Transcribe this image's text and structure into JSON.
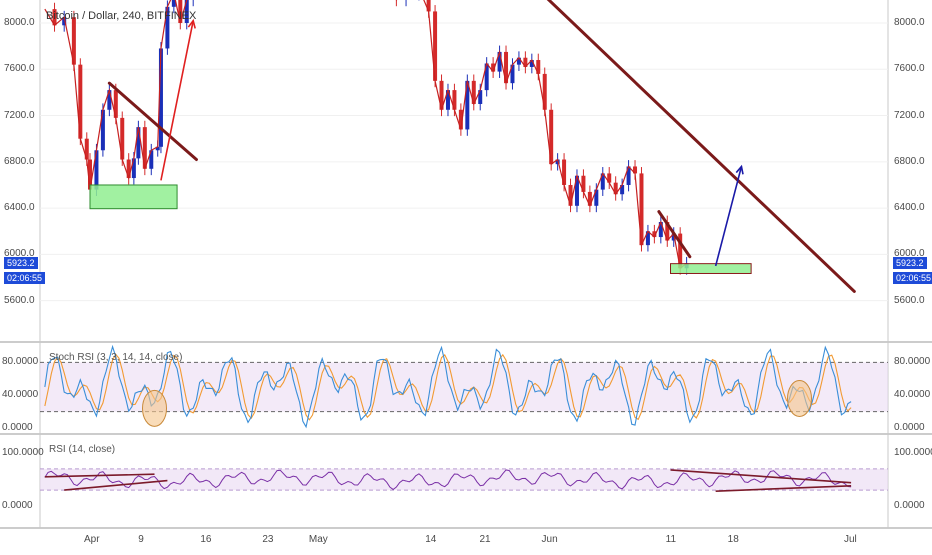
{
  "chart_data": [
    {
      "type": "candlestick",
      "title": "Bitcoin / Dollar, 240, BITFINEX",
      "ylim": [
        5500,
        8300
      ],
      "y_ticks": [
        "8000.0",
        "7600.0",
        "7200.0",
        "6800.0",
        "6400.0",
        "6000.0",
        "5600.0"
      ],
      "price_badge": "5923.2",
      "countdown_badge": "02:06:55",
      "close_series": [
        {
          "x": 0,
          "y": 8120
        },
        {
          "x": 1.5,
          "y": 7980
        },
        {
          "x": 3,
          "y": 8050
        },
        {
          "x": 4.5,
          "y": 7640
        },
        {
          "x": 5.5,
          "y": 7000
        },
        {
          "x": 6.5,
          "y": 6820
        },
        {
          "x": 7,
          "y": 6560
        },
        {
          "x": 8,
          "y": 6900
        },
        {
          "x": 9,
          "y": 7250
        },
        {
          "x": 10,
          "y": 7420
        },
        {
          "x": 11,
          "y": 7180
        },
        {
          "x": 12,
          "y": 6820
        },
        {
          "x": 13,
          "y": 6660
        },
        {
          "x": 13.8,
          "y": 6830
        },
        {
          "x": 14.5,
          "y": 7100
        },
        {
          "x": 15.5,
          "y": 6740
        },
        {
          "x": 16.5,
          "y": 6900
        },
        {
          "x": 17.5,
          "y": 6930
        },
        {
          "x": 18,
          "y": 7780
        },
        {
          "x": 19,
          "y": 8140
        },
        {
          "x": 20,
          "y": 8260
        },
        {
          "x": 21,
          "y": 8000
        },
        {
          "x": 22,
          "y": 8200
        },
        {
          "x": 23,
          "y": 8300
        },
        {
          "x": 52,
          "y": 8300
        },
        {
          "x": 53,
          "y": 8280
        },
        {
          "x": 54.5,
          "y": 8200
        },
        {
          "x": 56,
          "y": 8250
        },
        {
          "x": 58,
          "y": 8300
        },
        {
          "x": 59.5,
          "y": 8100
        },
        {
          "x": 60.5,
          "y": 7500
        },
        {
          "x": 61.5,
          "y": 7250
        },
        {
          "x": 62.5,
          "y": 7420
        },
        {
          "x": 63.5,
          "y": 7250
        },
        {
          "x": 64.5,
          "y": 7080
        },
        {
          "x": 65.5,
          "y": 7500
        },
        {
          "x": 66.5,
          "y": 7300
        },
        {
          "x": 67.5,
          "y": 7420
        },
        {
          "x": 68.5,
          "y": 7650
        },
        {
          "x": 69.5,
          "y": 7580
        },
        {
          "x": 70.5,
          "y": 7750
        },
        {
          "x": 71.5,
          "y": 7480
        },
        {
          "x": 72.5,
          "y": 7640
        },
        {
          "x": 73.5,
          "y": 7700
        },
        {
          "x": 74.5,
          "y": 7620
        },
        {
          "x": 75.5,
          "y": 7680
        },
        {
          "x": 76.5,
          "y": 7560
        },
        {
          "x": 77.5,
          "y": 7250
        },
        {
          "x": 78.5,
          "y": 6780
        },
        {
          "x": 79.5,
          "y": 6820
        },
        {
          "x": 80.5,
          "y": 6600
        },
        {
          "x": 81.5,
          "y": 6420
        },
        {
          "x": 82.5,
          "y": 6680
        },
        {
          "x": 83.5,
          "y": 6540
        },
        {
          "x": 84.5,
          "y": 6420
        },
        {
          "x": 85.5,
          "y": 6560
        },
        {
          "x": 86.5,
          "y": 6700
        },
        {
          "x": 87.5,
          "y": 6620
        },
        {
          "x": 88.5,
          "y": 6520
        },
        {
          "x": 89.5,
          "y": 6600
        },
        {
          "x": 90.5,
          "y": 6760
        },
        {
          "x": 91.5,
          "y": 6700
        },
        {
          "x": 92.5,
          "y": 6080
        },
        {
          "x": 93.5,
          "y": 6200
        },
        {
          "x": 94.5,
          "y": 6150
        },
        {
          "x": 95.5,
          "y": 6280
        },
        {
          "x": 96.5,
          "y": 6120
        },
        {
          "x": 97.5,
          "y": 6180
        },
        {
          "x": 98.5,
          "y": 5880
        },
        {
          "x": 99.5,
          "y": 5923
        }
      ],
      "trendlines": [
        {
          "from": {
            "x": 10,
            "y": 7480
          },
          "to": {
            "x": 23.5,
            "y": 6820
          },
          "color": "#7b1a1a"
        },
        {
          "from": {
            "x": 77,
            "y": 8260
          },
          "to": {
            "x": 125.5,
            "y": 5680
          },
          "color": "#7b1a1a"
        },
        {
          "from": {
            "x": 95.2,
            "y": 6370
          },
          "to": {
            "x": 100,
            "y": 5980
          },
          "color": "#7b1a1a"
        }
      ],
      "support_zones": [
        {
          "x0": 7,
          "x1": 20.5,
          "y0": 6395,
          "y1": 6600,
          "color": "#90ee90",
          "border": "#2e8b2e"
        },
        {
          "x0": 97,
          "x1": 109.5,
          "y0": 5835,
          "y1": 5920,
          "color": "#90ee90",
          "border": "#8b1a1a"
        }
      ],
      "arrows": [
        {
          "from": {
            "x": 18,
            "y": 6640
          },
          "to": {
            "x": 23,
            "y": 8020
          },
          "color": "#e02020"
        },
        {
          "from": {
            "x": 104,
            "y": 5900
          },
          "to": {
            "x": 108,
            "y": 6760
          },
          "color": "#1a1aa8"
        }
      ]
    },
    {
      "type": "line",
      "title": "Stoch RSI (3, 3, 14, 14, close)",
      "ylim": [
        0,
        100
      ],
      "y_ticks": [
        "80.0000",
        "40.0000",
        "0.0000"
      ],
      "levels": [
        80,
        20
      ],
      "highlights": [
        {
          "x": 17,
          "y": 24,
          "color": "#f5c48a"
        },
        {
          "x": 117,
          "y": 36,
          "color": "#f5c48a"
        }
      ]
    },
    {
      "type": "line",
      "title": "RSI (14, close)",
      "ylim": [
        0,
        100
      ],
      "y_ticks": [
        "100.0000",
        "0.0000"
      ],
      "band": [
        30,
        70
      ],
      "trendlines": [
        {
          "from": {
            "x": 0,
            "y": 55
          },
          "to": {
            "x": 17,
            "y": 60
          }
        },
        {
          "from": {
            "x": 3,
            "y": 30
          },
          "to": {
            "x": 19,
            "y": 48
          }
        },
        {
          "from": {
            "x": 97,
            "y": 68
          },
          "to": {
            "x": 125,
            "y": 44
          }
        },
        {
          "from": {
            "x": 104,
            "y": 28
          },
          "to": {
            "x": 125,
            "y": 38
          }
        }
      ]
    }
  ],
  "x_axis_labels": [
    "Apr",
    "9",
    "16",
    "23",
    "May",
    "14",
    "21",
    "Jun",
    "11",
    "18",
    "Jul"
  ]
}
